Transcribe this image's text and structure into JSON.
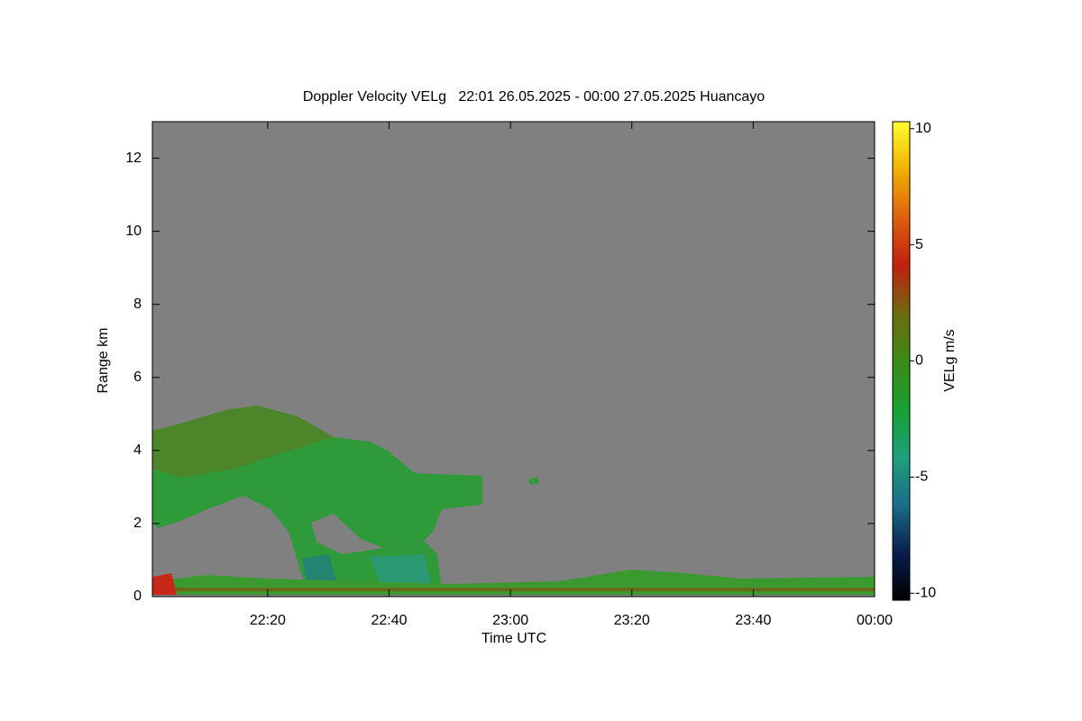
{
  "chart_data": {
    "type": "heatmap",
    "title": "Doppler Velocity VELg   22:01 26.05.2025 - 00:00 27.05.2025 Huancayo",
    "xlabel": "Time UTC",
    "ylabel": "Range km",
    "xlim": [
      1,
      120
    ],
    "xticks": [
      {
        "value": 20,
        "label": "22:20"
      },
      {
        "value": 40,
        "label": "22:40"
      },
      {
        "value": 60,
        "label": "23:00"
      },
      {
        "value": 80,
        "label": "23:20"
      },
      {
        "value": 100,
        "label": "23:40"
      },
      {
        "value": 120,
        "label": "00:00"
      }
    ],
    "ylim": [
      0,
      13
    ],
    "yticks": [
      0,
      2,
      4,
      6,
      8,
      10,
      12
    ],
    "colorbar": {
      "label": "VELg m/s",
      "lim": [
        -10.3,
        10.3
      ],
      "ticks": [
        -10,
        -5,
        0,
        5,
        10
      ],
      "colors": [
        "#000000",
        "#0a1e50",
        "#1a6e8a",
        "#1fa07a",
        "#18a030",
        "#3c8a18",
        "#6e6a10",
        "#c02010",
        "#e06010",
        "#f0b000",
        "#ffff30"
      ]
    }
  }
}
